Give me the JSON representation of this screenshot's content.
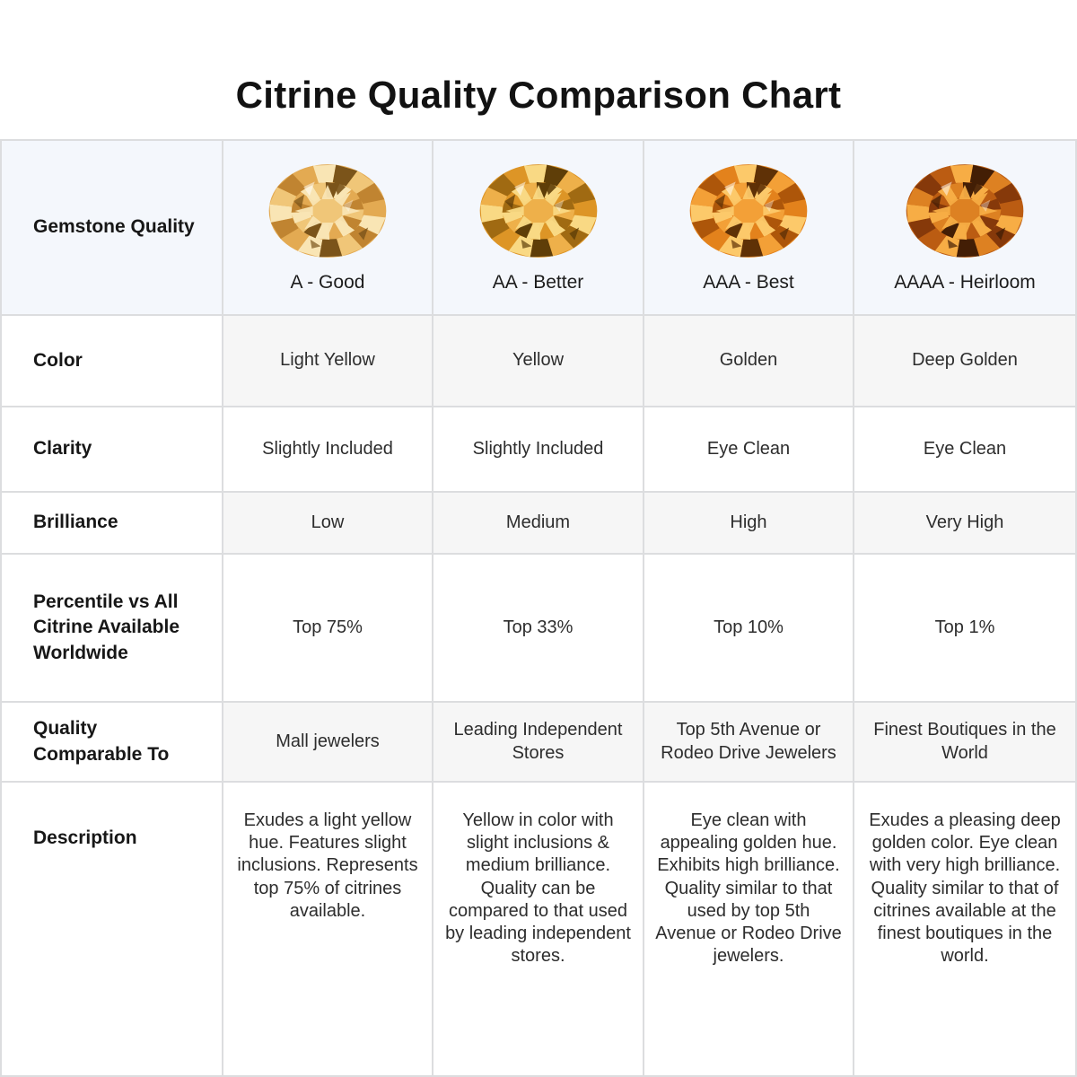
{
  "chart_data": {
    "type": "table",
    "title": "Citrine Quality Comparison Chart",
    "columns": [
      "Gemstone Quality",
      "A - Good",
      "AA - Better",
      "AAA - Best",
      "AAAA - Heirloom"
    ],
    "rows": [
      [
        "Color",
        "Light Yellow",
        "Yellow",
        "Golden",
        "Deep Golden"
      ],
      [
        "Clarity",
        "Slightly Included",
        "Slightly Included",
        "Eye Clean",
        "Eye Clean"
      ],
      [
        "Brilliance",
        "Low",
        "Medium",
        "High",
        "Very High"
      ],
      [
        "Percentile vs All Citrine Available Worldwide",
        "Top 75%",
        "Top 33%",
        "Top 10%",
        "Top 1%"
      ],
      [
        "Quality Comparable To",
        "Mall jewelers",
        "Leading Independent Stores",
        "Top 5th Avenue or Rodeo Drive Jewelers",
        "Finest Boutiques in the World"
      ],
      [
        "Description",
        "Exudes a light yellow hue. Features slight inclusions. Represents top 75% of citrines available.",
        "Yellow in color with slight inclusions & medium brilliance. Quality can be compared to that used by leading independent stores.",
        "Eye clean with appealing golden hue. Exhibits high brilliance. Quality similar to that used by top 5th Avenue or Rodeo Drive jewelers.",
        "Exudes a pleasing deep golden color. Eye clean with very high brilliance. Quality similar to that of citrines available at the finest boutiques in the world."
      ]
    ]
  },
  "gems": [
    {
      "name": "citrine-a-good-gem",
      "palette": {
        "light": "#f9e5b4",
        "base": "#f0c678",
        "mid": "#e3aa52",
        "dark": "#c08431",
        "deep": "#7b541a"
      }
    },
    {
      "name": "citrine-aa-better-gem",
      "palette": {
        "light": "#f9d984",
        "base": "#eeb04a",
        "mid": "#dd9526",
        "dark": "#a06a12",
        "deep": "#5f3e08"
      }
    },
    {
      "name": "citrine-aaa-best-gem",
      "palette": {
        "light": "#fcc96a",
        "base": "#f3a037",
        "mid": "#e3821c",
        "dark": "#ad560a",
        "deep": "#5f3106"
      }
    },
    {
      "name": "citrine-aaaa-heirloom-gem",
      "palette": {
        "light": "#f7ad45",
        "base": "#dd8122",
        "mid": "#bb5c12",
        "dark": "#86390a",
        "deep": "#431e05"
      }
    }
  ],
  "colors": {
    "header_row_bg": "#f4f7fc",
    "stripe_row_bg": "#f6f6f6",
    "grid_border": "#dcdddf",
    "title_text": "#121212",
    "label_text": "#171717",
    "value_text": "#2d2d2d"
  }
}
